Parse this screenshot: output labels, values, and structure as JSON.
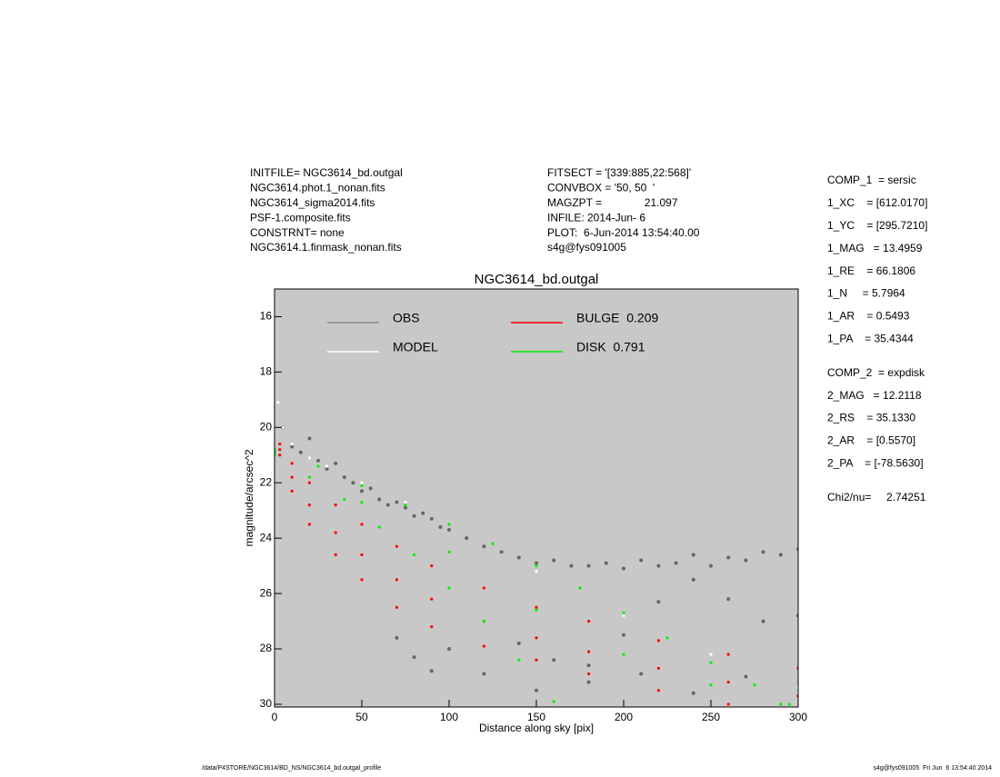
{
  "header": {
    "left": [
      "INITFILE= NGC3614_bd.outgal",
      "NGC3614.phot.1_nonan.fits",
      "NGC3614_sigma2014.fits",
      "PSF-1.composite.fits",
      "CONSTRNT= none",
      "NGC3614.1.finmask_nonan.fits"
    ],
    "middle": [
      "FITSECT = '[339:885,22:568]'",
      "CONVBOX = '50, 50  '",
      "MAGZPT =              21.097",
      "INFILE: 2014-Jun- 6",
      "PLOT:  6-Jun-2014 13:54:40.00",
      "s4g@fys091005"
    ]
  },
  "params": [
    [
      "COMP_1  = sersic",
      "1_XC    = [612.0170]",
      "1_YC    = [295.7210]",
      "1_MAG   = 13.4959",
      "1_RE    = 66.1806",
      "1_N     = 5.7964",
      "1_AR    = 0.5493",
      "1_PA    = 35.4344"
    ],
    [
      "COMP_2  = expdisk",
      "2_MAG   = 12.2118",
      "2_RS    = 35.1330",
      "2_AR    = [0.5570]",
      "2_PA    = [-78.5630]"
    ],
    [
      "Chi2/nu=     2.74251"
    ]
  ],
  "footer": {
    "left": "/data/P4STORE/NGC3614/BD_NS/NGC3614_bd.outgal_profile",
    "right": "s4g@fys091005  Fri Jun  6 13:54:40 2014"
  },
  "chart_data": {
    "type": "scatter",
    "title": "NGC3614_bd.outgal",
    "x_label": "Distance along sky [pix]",
    "y_label": "magnitude/arcsec^2",
    "xlim": [
      0,
      300
    ],
    "ylim": [
      15,
      30.1
    ],
    "y_inverted": true,
    "xticks": [
      0,
      50,
      100,
      150,
      200,
      250,
      300
    ],
    "yticks": [
      16,
      18,
      20,
      22,
      24,
      26,
      28,
      30
    ],
    "background": "#c8c8c8",
    "series": [
      {
        "name": "OBS",
        "color": "#666666",
        "legend_color": "#8c8c8c",
        "x": [
          5,
          10,
          15,
          20,
          25,
          30,
          35,
          40,
          45,
          50,
          55,
          60,
          65,
          70,
          75,
          80,
          85,
          90,
          95,
          100,
          110,
          120,
          130,
          140,
          150,
          160,
          170,
          180,
          190,
          200,
          210,
          220,
          230,
          240,
          250,
          260,
          270,
          280,
          290,
          300,
          70,
          80,
          90,
          100,
          120,
          140,
          160,
          180,
          200,
          220,
          240,
          260,
          280,
          300,
          150,
          180,
          210,
          240,
          270
        ],
        "values": [
          20.0,
          20.7,
          20.9,
          20.4,
          21.2,
          21.5,
          21.3,
          21.8,
          22.0,
          22.3,
          22.2,
          22.6,
          22.8,
          22.7,
          22.9,
          23.2,
          23.1,
          23.3,
          23.6,
          23.7,
          24.0,
          24.3,
          24.5,
          24.7,
          24.9,
          24.8,
          25.0,
          25.0,
          24.9,
          25.1,
          24.8,
          25.0,
          24.9,
          24.6,
          25.0,
          24.7,
          24.8,
          24.5,
          24.6,
          24.4,
          27.6,
          28.3,
          28.8,
          28.0,
          28.9,
          27.8,
          28.4,
          28.6,
          27.5,
          26.3,
          25.5,
          26.2,
          27.0,
          26.8,
          29.5,
          29.2,
          28.9,
          29.6,
          29.0
        ]
      },
      {
        "name": "MODEL",
        "color": "#ffffff",
        "legend_color": "#ffffff",
        "x": [
          2,
          5,
          10,
          20,
          30,
          50,
          75,
          100,
          150,
          200,
          250,
          300
        ],
        "values": [
          19.1,
          20.0,
          20.6,
          21.1,
          21.4,
          22.0,
          22.7,
          23.5,
          25.2,
          26.8,
          28.2,
          29.4
        ]
      },
      {
        "name": "BULGE  0.209",
        "color": "#ff0000",
        "legend_color": "#ff0000",
        "x": [
          3,
          10,
          20,
          35,
          50,
          70,
          90,
          120,
          150,
          180,
          220,
          260,
          300,
          3,
          10,
          20,
          35,
          50,
          70,
          90,
          120,
          150,
          180,
          220,
          260,
          300,
          3,
          10,
          20,
          35,
          50,
          70,
          90,
          120,
          150,
          180,
          220,
          260
        ],
        "values": [
          20.6,
          21.3,
          22.0,
          22.8,
          23.5,
          24.3,
          25.0,
          25.8,
          26.5,
          27.0,
          27.7,
          28.2,
          28.7,
          20.8,
          21.8,
          22.8,
          23.8,
          24.6,
          25.5,
          26.2,
          27.0,
          27.6,
          28.1,
          28.7,
          29.2,
          29.7,
          21.0,
          22.3,
          23.5,
          24.6,
          25.5,
          26.5,
          27.2,
          27.9,
          28.4,
          28.9,
          29.5,
          30.0
        ]
      },
      {
        "name": "DISK  0.791",
        "color": "#00ee00",
        "legend_color": "#00ee00",
        "x": [
          0,
          25,
          50,
          75,
          100,
          125,
          150,
          175,
          200,
          225,
          250,
          275,
          295,
          0,
          20,
          40,
          60,
          80,
          100,
          120,
          140,
          160,
          0,
          50,
          100,
          150,
          200,
          250,
          290
        ],
        "values": [
          20.8,
          21.4,
          22.1,
          22.8,
          23.5,
          24.2,
          25.0,
          25.8,
          26.7,
          27.6,
          28.5,
          29.3,
          30.0,
          21.0,
          21.8,
          22.6,
          23.6,
          24.6,
          25.8,
          27.0,
          28.4,
          29.9,
          20.9,
          22.7,
          24.5,
          26.6,
          28.2,
          29.3,
          30.0
        ]
      }
    ]
  }
}
